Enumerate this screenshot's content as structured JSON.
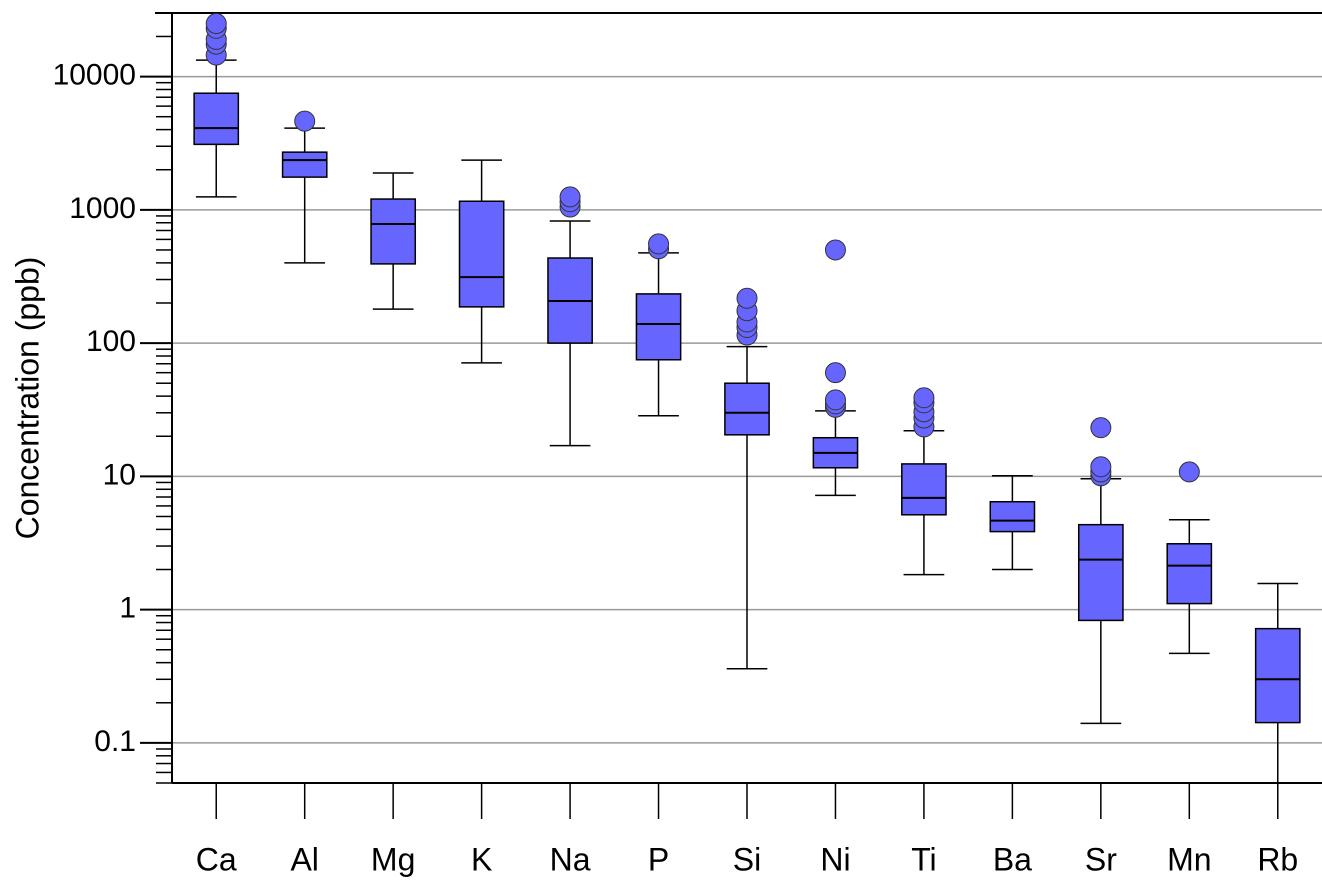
{
  "chart_data": {
    "type": "box",
    "y_label": "Concentration (ppb)",
    "log_scale": true,
    "grid": true,
    "color": "#6666ff",
    "categories": [
      "Ca",
      "Al",
      "Mg",
      "K",
      "Na",
      "P",
      "Si",
      "Ni",
      "Ti",
      "Ba",
      "Sr",
      "Mn",
      "Rb"
    ],
    "boxes": [
      {
        "min": 1250,
        "q1": 3100,
        "median": 4100,
        "q3": 7500,
        "max": 13300,
        "outliers": [
          14500,
          17500,
          19000,
          23000,
          25000
        ]
      },
      {
        "min": 400,
        "q1": 1760,
        "median": 2360,
        "q3": 2710,
        "max": 4100,
        "outliers": [
          4630
        ]
      },
      {
        "min": 180,
        "q1": 393,
        "median": 783,
        "q3": 1205,
        "max": 1890,
        "outliers": []
      },
      {
        "min": 71,
        "q1": 187,
        "median": 313,
        "q3": 1160,
        "max": 2360,
        "outliers": []
      },
      {
        "min": 17,
        "q1": 100,
        "median": 207,
        "q3": 435,
        "max": 824,
        "outliers": [
          1050,
          1150,
          1250
        ]
      },
      {
        "min": 28.5,
        "q1": 75,
        "median": 139,
        "q3": 234,
        "max": 475,
        "outliers": [
          510,
          555
        ]
      },
      {
        "min": 0.36,
        "q1": 20.5,
        "median": 30,
        "q3": 50,
        "max": 94,
        "outliers": [
          115,
          131,
          144,
          175,
          217
        ]
      },
      {
        "min": 7.2,
        "q1": 11.6,
        "median": 15,
        "q3": 19.5,
        "max": 31,
        "outliers": [
          33,
          35,
          37.5,
          60,
          500
        ]
      },
      {
        "min": 1.83,
        "q1": 5.15,
        "median": 6.9,
        "q3": 12.4,
        "max": 22,
        "outliers": [
          23.5,
          27.4,
          30.5,
          35.6,
          38.9
        ]
      },
      {
        "min": 2.0,
        "q1": 3.85,
        "median": 4.65,
        "q3": 6.45,
        "max": 10.1,
        "outliers": []
      },
      {
        "min": 0.14,
        "q1": 0.83,
        "median": 2.37,
        "q3": 4.34,
        "max": 9.6,
        "outliers": [
          10.1,
          10.8,
          11.8,
          23.2
        ]
      },
      {
        "min": 0.47,
        "q1": 1.11,
        "median": 2.14,
        "q3": 3.12,
        "max": 4.73,
        "outliers": [
          10.8
        ]
      },
      {
        "min": 0.05,
        "q1": 0.142,
        "median": 0.3,
        "q3": 0.72,
        "max": 1.57,
        "outliers": []
      }
    ],
    "ylim": [
      0.05,
      30000
    ],
    "yticks": [
      0.1,
      1,
      10,
      100,
      1000,
      10000
    ]
  }
}
